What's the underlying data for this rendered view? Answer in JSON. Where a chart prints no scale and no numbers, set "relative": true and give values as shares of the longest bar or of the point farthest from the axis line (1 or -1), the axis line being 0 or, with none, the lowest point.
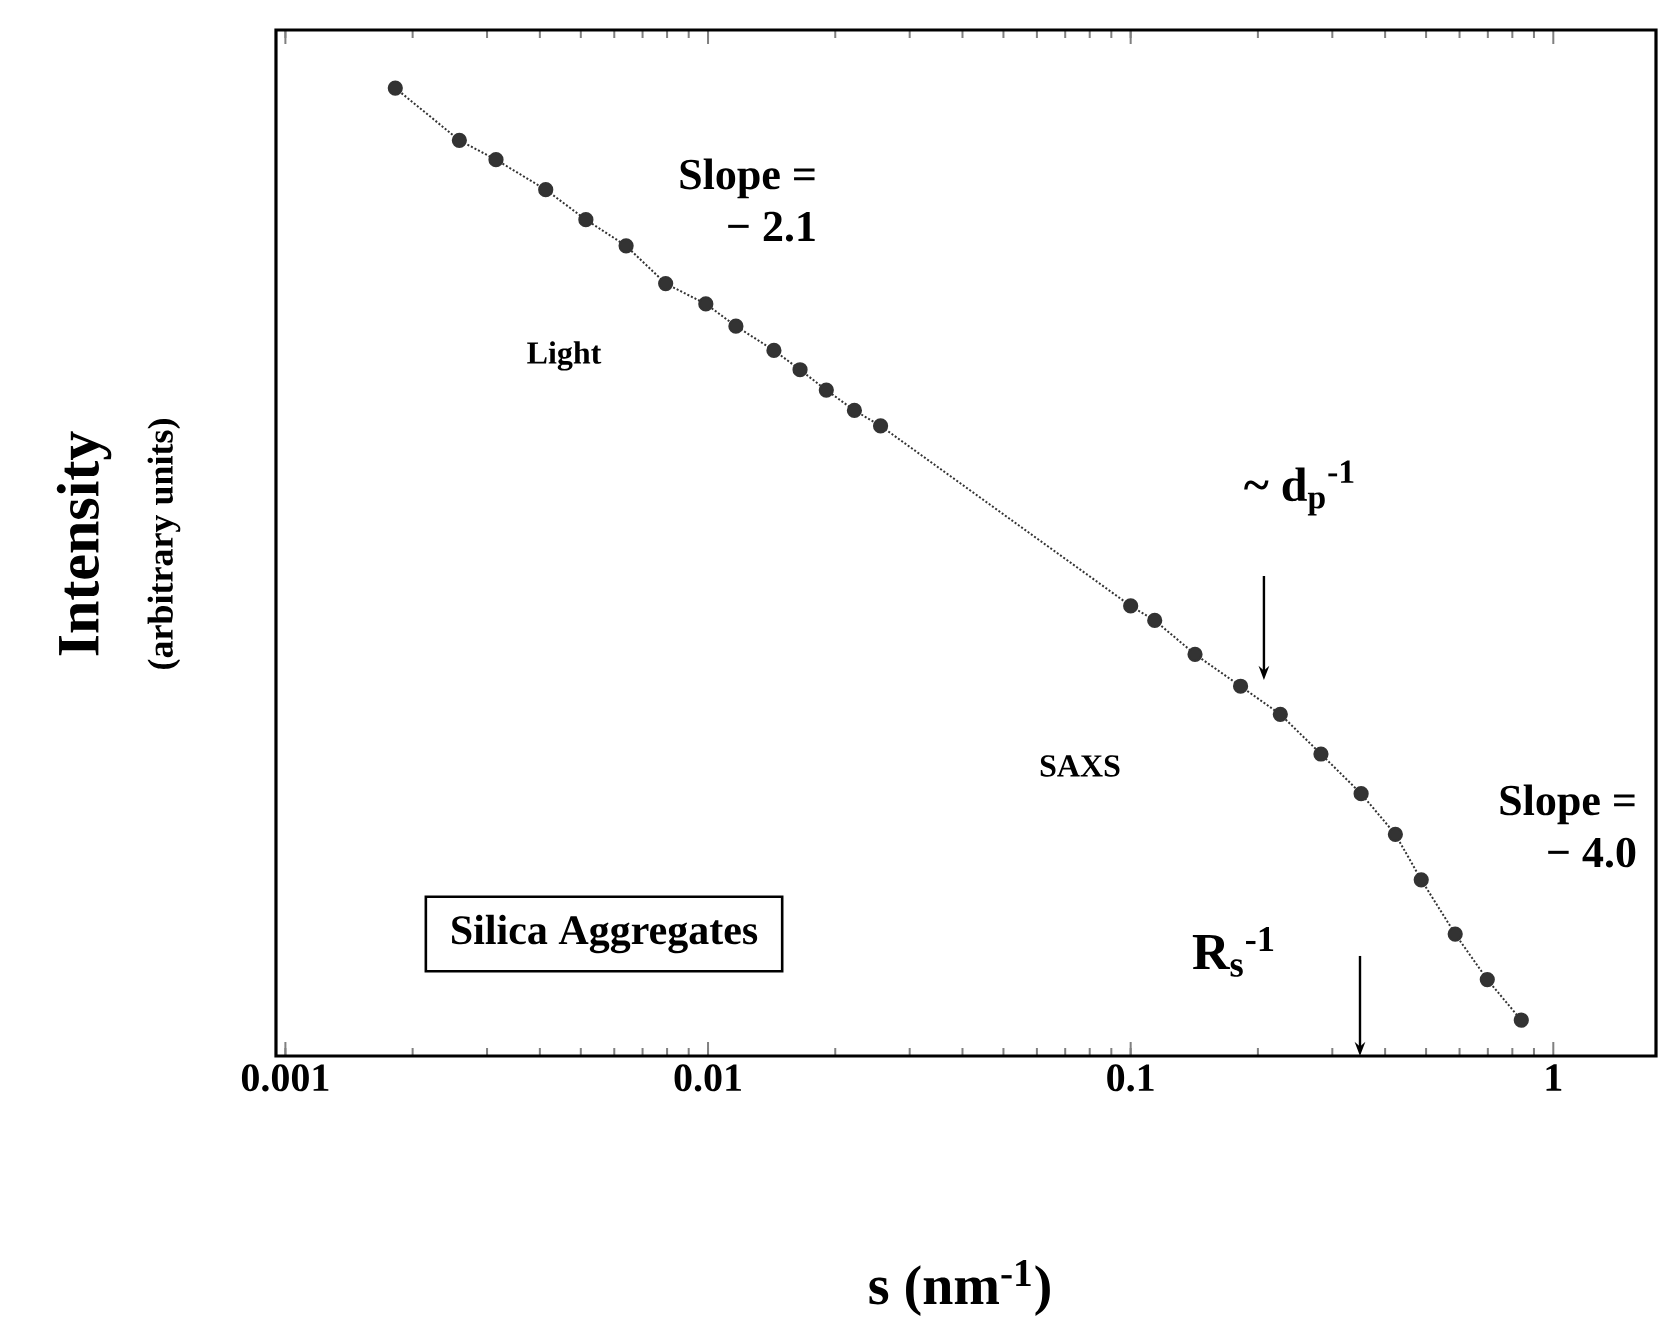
{
  "chart_data": {
    "type": "line",
    "relative": true,
    "xlabel": "s  (nm$^{-1}$)",
    "ylabel": "Intensity",
    "log": "x",
    "xlim": [
      0.00095,
      1.75
    ],
    "xticks": [
      0.001,
      0.01,
      0.1,
      1
    ],
    "tick_labels": "x",
    "marker": "circle",
    "line_style": "dotted",
    "series": [
      {
        "color": "#333333",
        "x": [
          0.00182,
          0.00258,
          0.00315,
          0.00413,
          0.00514,
          0.0064,
          0.00794,
          0.00988,
          0.01164,
          0.01432,
          0.01651,
          0.01905,
          0.0222,
          0.0256,
          0.1,
          0.114,
          0.142,
          0.182,
          0.226,
          0.282,
          0.351,
          0.423,
          0.487,
          0.586,
          0.698,
          0.84
        ],
        "values": [
          1.0,
          0.946,
          0.926,
          0.895,
          0.864,
          0.837,
          0.798,
          0.777,
          0.754,
          0.729,
          0.709,
          0.688,
          0.667,
          0.651,
          0.465,
          0.45,
          0.415,
          0.382,
          0.353,
          0.312,
          0.271,
          0.229,
          0.182,
          0.126,
          0.079,
          0.037
        ]
      }
    ],
    "annotations": [
      "Slope = − 2.1",
      "Light",
      "~ d$_{p}$$^{-1}$",
      "SAXS",
      "Slope = − 4.0",
      "R$_{s}$$^{-1}$",
      "Silica Aggregates",
      "(arbitrary units)"
    ]
  }
}
